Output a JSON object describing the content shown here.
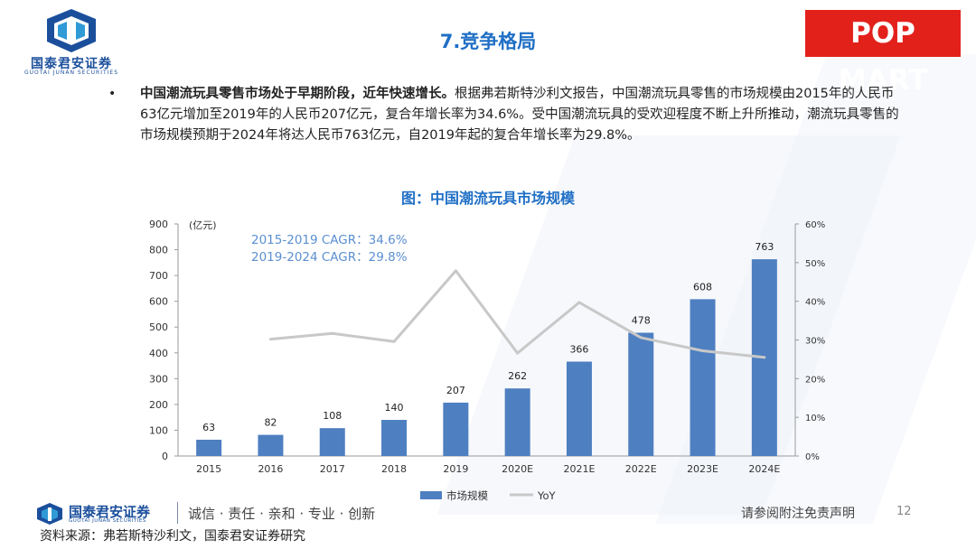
{
  "header": {
    "logo_cn": "国泰君安证券",
    "logo_en": "GUOTAI JUNAN SECURITIES",
    "slide_title": "7.竞争格局",
    "brand_logo": "POP MART"
  },
  "body": {
    "bullet": "•",
    "lead_bold": "中国潮流玩具零售市场处于早期阶段，近年快速增长。",
    "lead_text": "根据弗若斯特沙利文报告，中国潮流玩具零售的市场规模由2015年的人民币63亿元增加至2019年的人民币207亿元，复合年增长率为34.6%。受中国潮流玩具的受欢迎程度不断上升所推动，潮流玩具零售的市场规模预期于2024年将达人民币763亿元，自2019年起的复合年增长率为29.8%。"
  },
  "chart_data": {
    "type": "bar",
    "title": "图：中国潮流玩具市场规模",
    "categories": [
      "2015",
      "2016",
      "2017",
      "2018",
      "2019",
      "2020E",
      "2021E",
      "2022E",
      "2023E",
      "2024E"
    ],
    "series": [
      {
        "name": "市场规模",
        "type": "bar",
        "axis": "left",
        "color": "#4e7fc1",
        "values": [
          63,
          82,
          108,
          140,
          207,
          262,
          366,
          478,
          608,
          763
        ]
      },
      {
        "name": "YoY",
        "type": "line",
        "axis": "right",
        "color": "#c8c8c8",
        "values": [
          null,
          30.2,
          31.7,
          29.6,
          47.9,
          26.6,
          39.7,
          30.6,
          27.2,
          25.5
        ]
      }
    ],
    "ylabel": "(亿元)",
    "ylim": [
      0,
      900
    ],
    "yticks": [
      "0",
      "100",
      "200",
      "300",
      "400",
      "500",
      "600",
      "700",
      "800",
      "900"
    ],
    "y2lim": [
      0,
      60
    ],
    "y2ticks": [
      "0%",
      "10%",
      "20%",
      "30%",
      "40%",
      "50%",
      "60%"
    ],
    "annotations": [
      "2015-2019 CAGR：34.6%",
      "2019-2024 CAGR：29.8%"
    ],
    "legend": [
      "市场规模",
      "YoY"
    ],
    "legend_position": "bottom"
  },
  "footer": {
    "logo_cn": "国泰君安证券",
    "logo_en": "GUOTAI JUNAN SECURITIES",
    "slogan": "诚信 · 责任 · 亲和 · 专业 · 创新",
    "disclaimer": "请参阅附注免责声明",
    "page_number": "12",
    "source": "资料来源：弗若斯特沙利文，国泰君安证券研究"
  }
}
